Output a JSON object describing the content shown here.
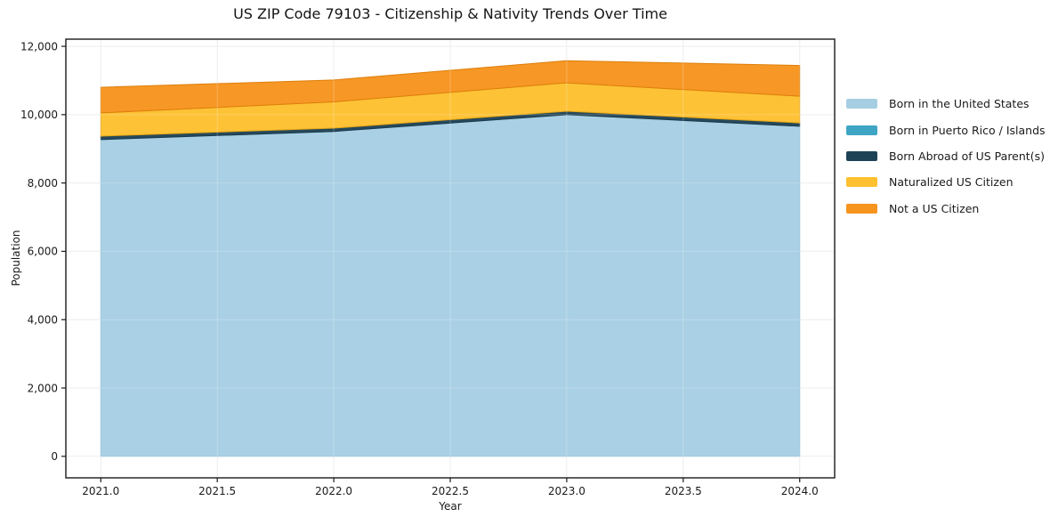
{
  "chart_data": {
    "type": "area",
    "stacked": true,
    "title": "US ZIP Code 79103 - Citizenship & Nativity Trends Over Time",
    "xlabel": "Year",
    "ylabel": "Population",
    "x": [
      2021,
      2022,
      2023,
      2024
    ],
    "series": [
      {
        "name": "Born in the United States",
        "color": "#a6cee3",
        "edge": "#8cbcd6",
        "values": [
          9270,
          9510,
          10000,
          9660
        ]
      },
      {
        "name": "Born in Puerto Rico / Islands",
        "color": "#3fa5c4",
        "edge": "#3794b0",
        "values": [
          0,
          0,
          0,
          0
        ]
      },
      {
        "name": "Born Abroad of US Parent(s)",
        "color": "#1f4356",
        "edge": "#1a3a4b",
        "values": [
          100,
          95,
          100,
          100
        ]
      },
      {
        "name": "Naturalized US Citizen",
        "color": "#fdc02f",
        "edge": "#e5a616",
        "values": [
          680,
          770,
          830,
          780
        ]
      },
      {
        "name": "Not a US Citizen",
        "color": "#f7941e",
        "edge": "#dd7f0b",
        "values": [
          750,
          640,
          650,
          900
        ]
      }
    ],
    "totals": [
      10800,
      11015,
      11580,
      11440
    ],
    "x_ticks": {
      "values": [
        2021.0,
        2021.5,
        2022.0,
        2022.5,
        2023.0,
        2023.5,
        2024.0
      ],
      "labels": [
        "2021.0",
        "2021.5",
        "2022.0",
        "2022.5",
        "2023.0",
        "2023.5",
        "2024.0"
      ]
    },
    "y_ticks": {
      "values": [
        0,
        2000,
        4000,
        6000,
        8000,
        10000,
        12000
      ],
      "labels": [
        "0",
        "2,000",
        "4,000",
        "6,000",
        "8,000",
        "10,000",
        "12,000"
      ]
    },
    "xlim": [
      2020.85,
      2024.15
    ],
    "ylim": [
      -630,
      12210
    ],
    "grid": true,
    "legend_position": "right",
    "colors": {
      "grid": "#e9e9e9",
      "spine": "#1a1a1a",
      "background": "#ffffff"
    }
  }
}
